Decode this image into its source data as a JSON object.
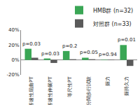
{
  "chart_data": {
    "type": "bar",
    "categories": [
      "等速性屈曲PT",
      "等速性伸展PT",
      "等尺性PT",
      "6分間歩行試験",
      "握力",
      "握持久力"
    ],
    "series": [
      {
        "name": "HMB群 (n=32)",
        "color": "#3aa655",
        "values": [
          15,
          2,
          12,
          3,
          0.5,
          20
        ]
      },
      {
        "name": "対照群 (n=33)",
        "color": "#5a5a5a",
        "values": [
          3,
          -4,
          1,
          1,
          0.5,
          -8
        ]
      }
    ],
    "annotations": [
      "p=0.03",
      "p=0.03",
      "p=0.2",
      "p=0.05",
      "p=0.94",
      "p=0.01"
    ],
    "ylim": [
      -20,
      40
    ],
    "yticks": [
      {
        "value": -20,
        "label": "-20%"
      },
      {
        "value": 0,
        "label": "0%"
      },
      {
        "value": 20,
        "label": "20%"
      },
      {
        "value": 40,
        "label": "40%"
      }
    ],
    "grid": false,
    "legend": "top"
  }
}
